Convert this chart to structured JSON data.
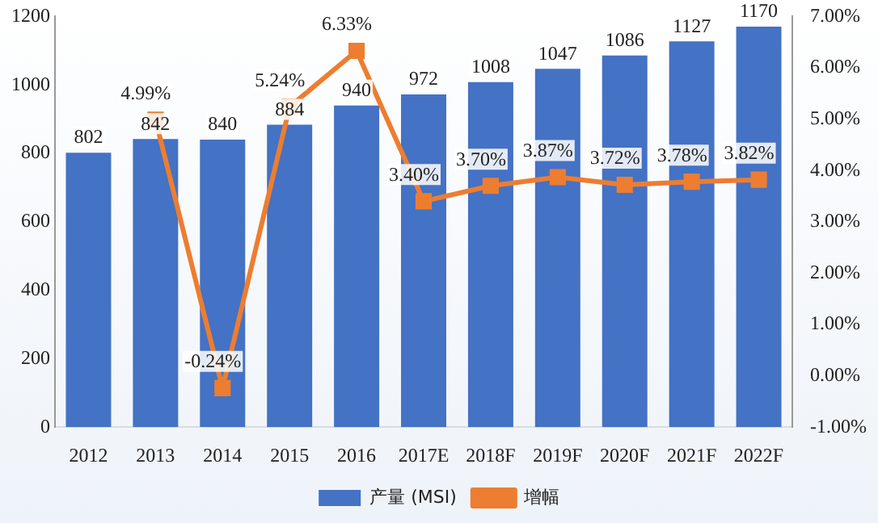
{
  "chart_data": {
    "type": "bar",
    "categories": [
      "2012",
      "2013",
      "2014",
      "2015",
      "2016",
      "2017E",
      "2018F",
      "2019F",
      "2020F",
      "2021F",
      "2022F"
    ],
    "series": [
      {
        "name": "产量 (MSI)",
        "color": "#4472c4",
        "values": [
          802,
          842,
          840,
          884,
          940,
          972,
          1008,
          1047,
          1086,
          1127,
          1170
        ],
        "value_labels": [
          "802",
          "842",
          "840",
          "884",
          "940",
          "972",
          "1008",
          "1047",
          "1086",
          "1127",
          "1170"
        ]
      },
      {
        "name": "增幅",
        "type": "line",
        "axis": "y2",
        "color": "#ed7d31",
        "marker": "square",
        "values": [
          null,
          4.99,
          -0.24,
          5.24,
          6.33,
          3.4,
          3.7,
          3.87,
          3.72,
          3.78,
          3.82
        ],
        "value_labels": [
          null,
          "4.99%",
          "-0.24%",
          "5.24%",
          "6.33%",
          "3.40%",
          "3.70%",
          "3.87%",
          "3.72%",
          "3.78%",
          "3.82%"
        ]
      }
    ],
    "ylim": [
      0,
      1200
    ],
    "yticks": [
      0,
      200,
      400,
      600,
      800,
      1000,
      1200
    ],
    "y2lim": [
      -1,
      7
    ],
    "y2ticks": [
      {
        "value": -1,
        "label": "-1.00%"
      },
      {
        "value": 0,
        "label": "0.00%"
      },
      {
        "value": 1,
        "label": "1.00%"
      },
      {
        "value": 2,
        "label": "2.00%"
      },
      {
        "value": 3,
        "label": "3.00%"
      },
      {
        "value": 4,
        "label": "4.00%"
      },
      {
        "value": 5,
        "label": "5.00%"
      },
      {
        "value": 6,
        "label": "6.00%"
      },
      {
        "value": 7,
        "label": "7.00%"
      }
    ],
    "grid": false,
    "legend": "bottom"
  }
}
